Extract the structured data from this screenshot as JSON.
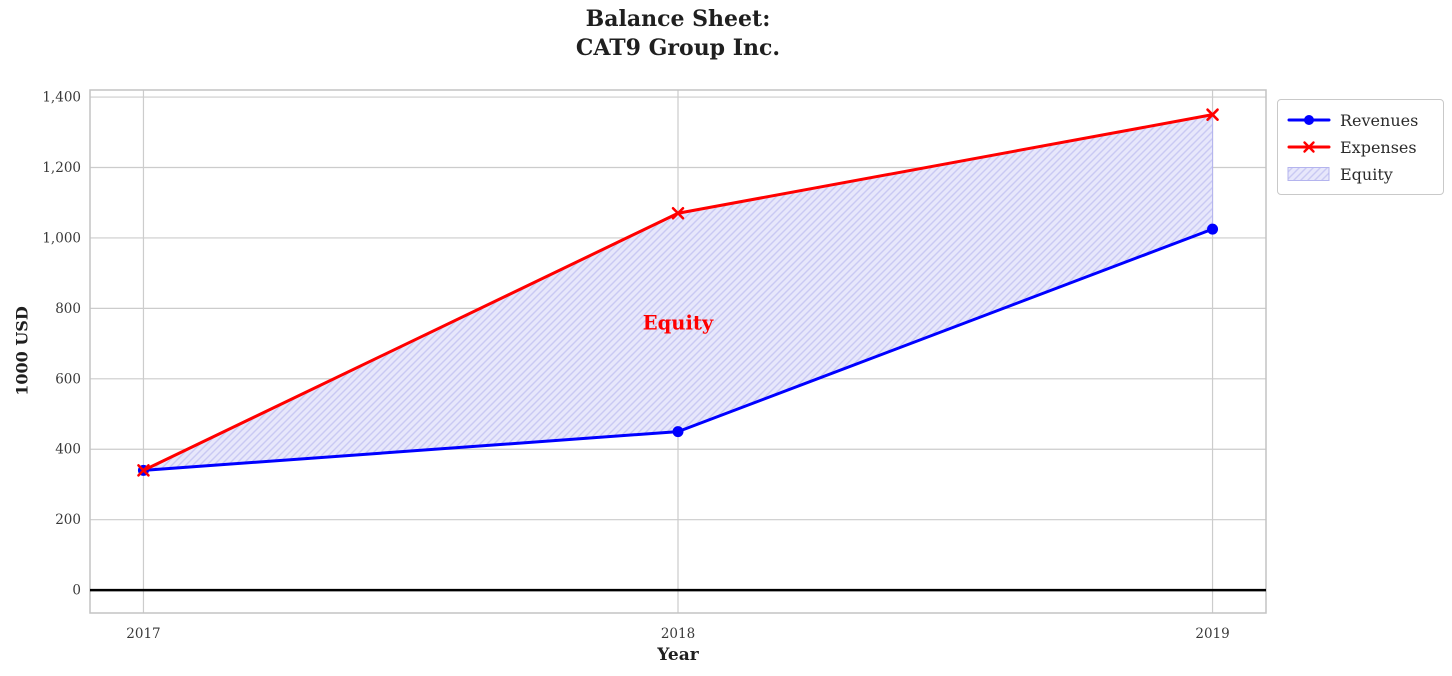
{
  "figure": {
    "title_line1": "Balance Sheet:",
    "title_line2": "CAT9 Group Inc.",
    "background_color": "#ffffff",
    "text_color": "#1f1f1f"
  },
  "chart_data": {
    "type": "line",
    "title": "Balance Sheet:\nCAT9 Group Inc.",
    "xlabel": "Year",
    "ylabel": "1000 USD",
    "x": [
      2017,
      2018,
      2019
    ],
    "xtick_labels": [
      "2017",
      "2018",
      "2019"
    ],
    "ytick_values": [
      0,
      200,
      400,
      600,
      800,
      1000,
      1200,
      1400
    ],
    "ytick_labels": [
      "0",
      "200",
      "400",
      "600",
      "800",
      "1,000",
      "1,200",
      "1,400"
    ],
    "xlim": [
      2016.9,
      2019.1
    ],
    "ylim": [
      -65,
      1420
    ],
    "grid": true,
    "grid_color": "#cccccc",
    "border_color": "#c3c3c3",
    "tick_label_color": "#3a3a3a",
    "series": [
      {
        "name": "Revenues",
        "values": [
          340,
          450,
          1025
        ],
        "color": "#0000ff",
        "marker": "circle",
        "line_width": 3
      },
      {
        "name": "Expenses",
        "values": [
          340,
          1070,
          1350
        ],
        "color": "#ff0000",
        "marker": "x",
        "line_width": 3
      }
    ],
    "fill_between": {
      "name": "Equity",
      "upper_series": "Expenses",
      "lower_series": "Revenues",
      "hatch": "//",
      "face_color": "#e7e7fb",
      "hatch_color": "#c9c9f3",
      "edge_color": "#b4b4ee"
    },
    "annotation": {
      "text": "Equity",
      "x": 2018,
      "y": 760,
      "color": "#ff0000"
    },
    "zero_line": {
      "y": 0,
      "color": "#000000",
      "width": 2.5
    },
    "legend": {
      "position": "outside upper right",
      "border_color": "#c9c9c9",
      "items": [
        "Revenues",
        "Expenses",
        "Equity"
      ]
    }
  }
}
